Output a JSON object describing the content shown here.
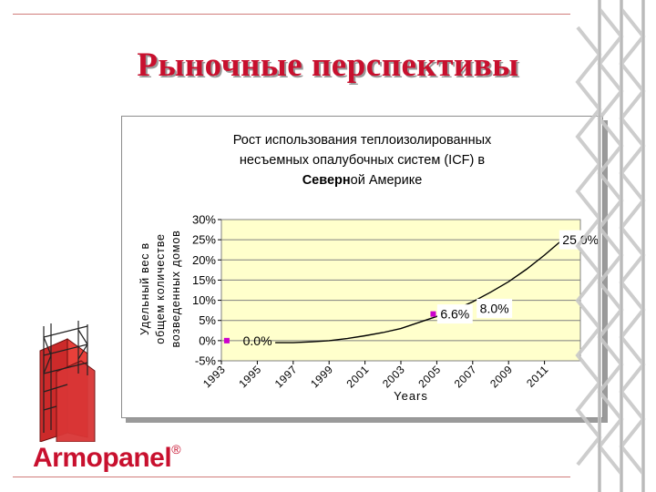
{
  "slide": {
    "title": "Рыночные перспективы",
    "logo_text": "Armopanel",
    "logo_reg": "®"
  },
  "colors": {
    "title": "#c8102e",
    "plot_background": "#ffffcc",
    "line": "#000000",
    "marker": "#cc00cc",
    "brand": "#c8102e"
  },
  "chart_data": {
    "type": "line",
    "title_lines": [
      "Рост использования теплоизолированных",
      "несъемных опалубочных систем (ICF) в"
    ],
    "title_last_bold": "Северн",
    "title_last_normal": "ой Америке",
    "ylabel_lines": [
      "Удельный вес в",
      "общем количестве",
      "возведенных домов"
    ],
    "xlabel": "Years",
    "y_ticks": [
      "-5%",
      "0%",
      "5%",
      "10%",
      "15%",
      "20%",
      "25%",
      "30%"
    ],
    "y_tick_values": [
      -5,
      0,
      5,
      10,
      15,
      20,
      25,
      30
    ],
    "ylim": [
      -5,
      30
    ],
    "x_ticks": [
      "1993",
      "1995",
      "1997",
      "1999",
      "2001",
      "2003",
      "2005",
      "2007",
      "2009",
      "2011"
    ],
    "x_tick_values": [
      1993,
      1995,
      1997,
      1999,
      2001,
      2003,
      2005,
      2007,
      2009,
      2011
    ],
    "xlim": [
      1993,
      2013
    ],
    "grid": true,
    "series": [
      {
        "x": [
          1996,
          1997,
          1998,
          1999,
          2000,
          2001,
          2002,
          2003,
          2004,
          2005,
          2006,
          2007,
          2008,
          2009,
          2010,
          2011,
          2012
        ],
        "y": [
          -0.5,
          -0.5,
          -0.3,
          0.0,
          0.5,
          1.2,
          2.0,
          3.0,
          4.5,
          6.0,
          7.7,
          9.6,
          12.0,
          14.6,
          17.7,
          21.2,
          25.0
        ]
      }
    ],
    "markers": [
      {
        "x": 1993.3,
        "y": 0.0
      },
      {
        "x": 2004.8,
        "y": 6.6
      }
    ],
    "annotations": [
      {
        "text": "0.0%",
        "x": 1994.2,
        "y": 0.0,
        "boxed": false
      },
      {
        "text": "6.6%",
        "x": 2005.2,
        "y": 6.6,
        "boxed": true
      },
      {
        "text": "8.0%",
        "x": 2007.4,
        "y": 8.0,
        "boxed": true
      },
      {
        "text": "25.0%",
        "x": 2012.0,
        "y": 25.0,
        "boxed": true
      }
    ]
  }
}
